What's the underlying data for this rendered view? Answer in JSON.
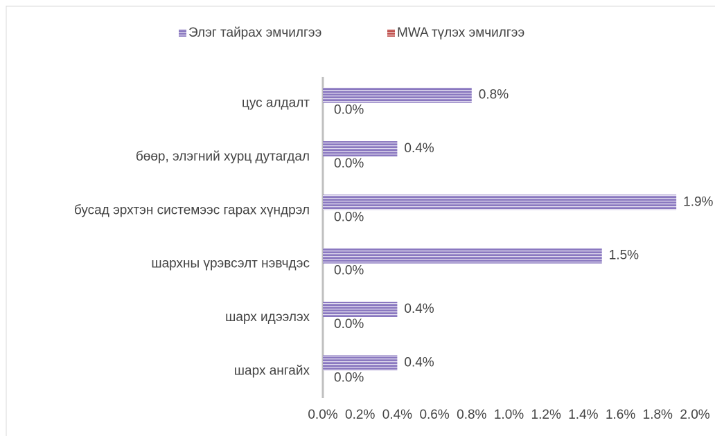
{
  "chart_data": {
    "type": "barh",
    "categories": [
      "цус алдалт",
      "бөөр, элэгний хурц дутагдал",
      "бусад эрхтэн системээс гарах хүндрэл",
      "шархны үрэвсэлт нэвчдэс",
      "шарх идээлэх",
      "шарх ангайх"
    ],
    "series": [
      {
        "name": "Элэг тайрах эмчилгээ",
        "color": "#8a78c0",
        "values": [
          0.8,
          0.4,
          1.9,
          1.5,
          0.4,
          0.4
        ],
        "value_labels": [
          "0.8%",
          "0.4%",
          "1.9%",
          "1.5%",
          "0.4%",
          "0.4%"
        ]
      },
      {
        "name": "MWA түлэх эмчилгээ",
        "color": "#c0504d",
        "values": [
          0,
          0,
          0,
          0,
          0,
          0
        ],
        "value_labels": [
          "0.0%",
          "0.0%",
          "0.0%",
          "0.0%",
          "0.0%",
          "0.0%"
        ]
      }
    ],
    "xlim": [
      0,
      2
    ],
    "xticks": [
      {
        "value": 0,
        "label": "0.0%"
      },
      {
        "value": 0.2,
        "label": "0.2%"
      },
      {
        "value": 0.4,
        "label": "0.4%"
      },
      {
        "value": 0.6,
        "label": "0.6%"
      },
      {
        "value": 0.8,
        "label": "0.8%"
      },
      {
        "value": 1.0,
        "label": "1.0%"
      },
      {
        "value": 1.2,
        "label": "1.2%"
      },
      {
        "value": 1.4,
        "label": "1.4%"
      },
      {
        "value": 1.6,
        "label": "1.6%"
      },
      {
        "value": 1.8,
        "label": "1.8%"
      },
      {
        "value": 2.0,
        "label": "2.0%"
      }
    ],
    "grid": false,
    "legend": "top"
  }
}
